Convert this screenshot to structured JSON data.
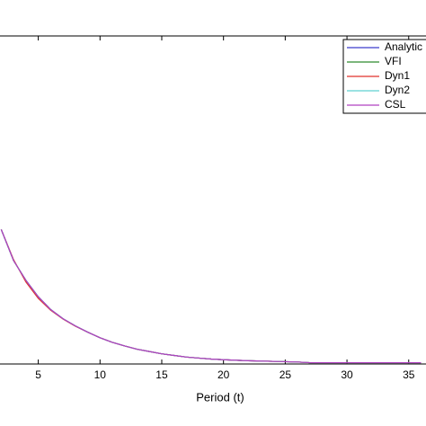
{
  "chart_data": {
    "type": "line",
    "xlabel": "Period (t)",
    "x": [
      2,
      3,
      4,
      5,
      6,
      7,
      8,
      9,
      10,
      11,
      12,
      13,
      14,
      15,
      16,
      17,
      18,
      19,
      20,
      22,
      24,
      26,
      27,
      28,
      30,
      32,
      34,
      36
    ],
    "series": [
      {
        "name": "Analytic",
        "color": "#3a3acc",
        "values": [
          0.41,
          0.315,
          0.255,
          0.205,
          0.166,
          0.138,
          0.116,
          0.097,
          0.08,
          0.066,
          0.055,
          0.045,
          0.038,
          0.031,
          0.026,
          0.021,
          0.018,
          0.015,
          0.013,
          0.01,
          0.008,
          0.006,
          0.004,
          0.004,
          0.004,
          0.004,
          0.004,
          0.004
        ]
      },
      {
        "name": "VFI",
        "color": "#2e8b2e",
        "values": [
          0.41,
          0.315,
          0.255,
          0.205,
          0.166,
          0.138,
          0.116,
          0.097,
          0.08,
          0.066,
          0.055,
          0.045,
          0.038,
          0.031,
          0.026,
          0.021,
          0.018,
          0.015,
          0.013,
          0.01,
          0.008,
          0.006,
          0.004,
          0.004,
          0.004,
          0.004,
          0.004,
          0.004
        ]
      },
      {
        "name": "Dyn1",
        "color": "#e0302a",
        "values": [
          0.41,
          0.318,
          0.25,
          0.2,
          0.164,
          0.137,
          0.115,
          0.097,
          0.08,
          0.066,
          0.055,
          0.045,
          0.038,
          0.031,
          0.026,
          0.021,
          0.018,
          0.015,
          0.013,
          0.01,
          0.008,
          0.006,
          0.004,
          0.004,
          0.004,
          0.004,
          0.004,
          0.004
        ]
      },
      {
        "name": "Dyn2",
        "color": "#5fd0d0",
        "values": [
          0.41,
          0.315,
          0.255,
          0.205,
          0.166,
          0.138,
          0.116,
          0.097,
          0.08,
          0.066,
          0.055,
          0.045,
          0.038,
          0.031,
          0.026,
          0.021,
          0.018,
          0.015,
          0.013,
          0.01,
          0.008,
          0.006,
          0.004,
          0.004,
          0.004,
          0.004,
          0.004,
          0.004
        ]
      },
      {
        "name": "CSL",
        "color": "#b040c0",
        "values": [
          0.41,
          0.315,
          0.255,
          0.205,
          0.166,
          0.138,
          0.116,
          0.097,
          0.08,
          0.066,
          0.055,
          0.045,
          0.038,
          0.031,
          0.026,
          0.021,
          0.018,
          0.015,
          0.013,
          0.01,
          0.008,
          0.006,
          0.004,
          0.004,
          0.004,
          0.004,
          0.004,
          0.004
        ]
      }
    ],
    "xlim": [
      1.9,
      36.4
    ],
    "xticks": [
      5,
      10,
      15,
      20,
      25,
      30,
      35
    ],
    "ylim": [
      0,
      1
    ],
    "legend": "upper right"
  }
}
